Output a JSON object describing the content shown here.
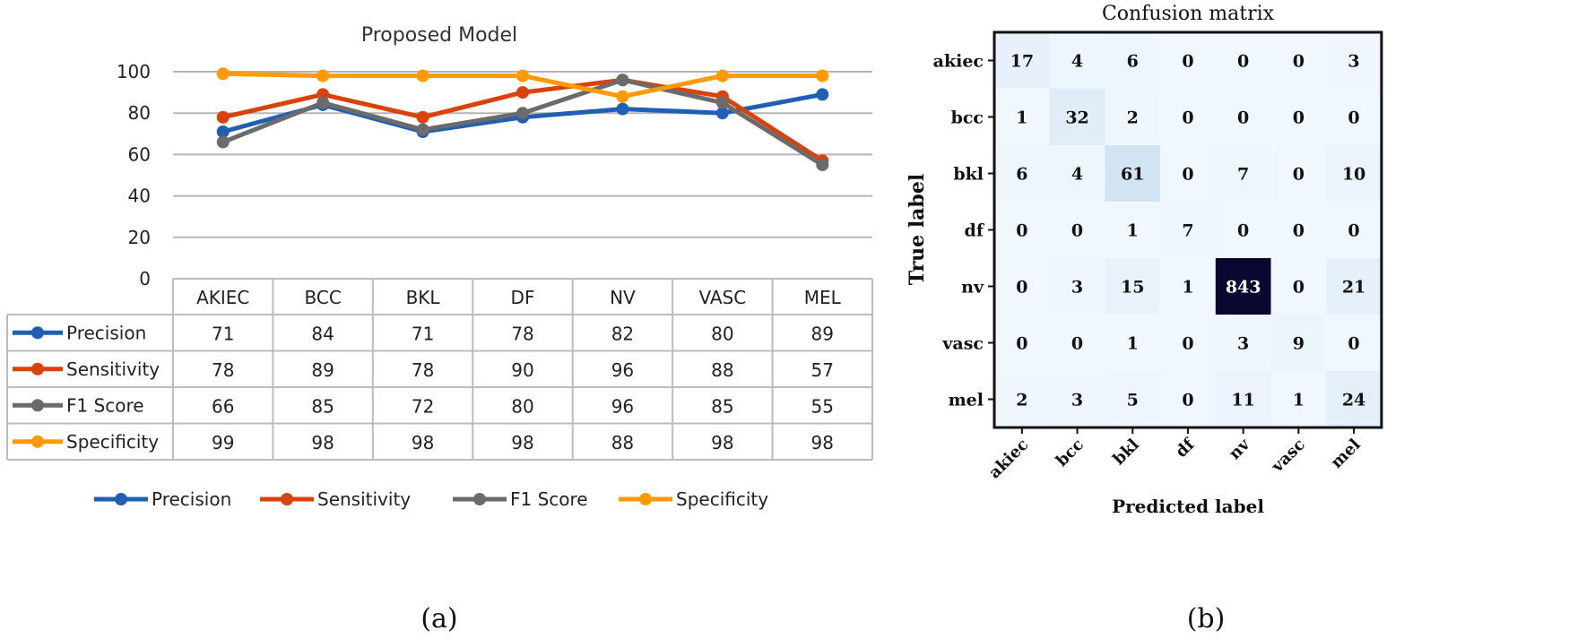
{
  "chart_data": [
    {
      "type": "line",
      "title": "Proposed Model",
      "categories": [
        "AKIEC",
        "BCC",
        "BKL",
        "DF",
        "NV",
        "VASC",
        "MEL"
      ],
      "yticks": [
        "0",
        "20",
        "40",
        "60",
        "80",
        "100"
      ],
      "ylim": [
        0,
        100
      ],
      "grid": true,
      "legend_placement": "bottom",
      "series": [
        {
          "name": "Precision",
          "color": "#1f5fb4",
          "values": [
            71,
            84,
            71,
            78,
            82,
            80,
            89
          ]
        },
        {
          "name": "Sensitivity",
          "color": "#d9420b",
          "values": [
            78,
            89,
            78,
            90,
            96,
            88,
            57
          ]
        },
        {
          "name": "F1 Score",
          "color": "#6b6b6b",
          "values": [
            66,
            85,
            72,
            80,
            96,
            85,
            55
          ]
        },
        {
          "name": "Specificity",
          "color": "#ff9a00",
          "values": [
            99,
            98,
            98,
            98,
            88,
            98,
            98
          ]
        }
      ],
      "data_table": true,
      "caption": "(a)"
    },
    {
      "type": "heatmap",
      "title": "Confusion matrix",
      "xlabel": "Predicted label",
      "ylabel": "True label",
      "labels": [
        "akiec",
        "bcc",
        "bkl",
        "df",
        "nv",
        "vasc",
        "mel"
      ],
      "colormap": "Blues",
      "matrix": [
        [
          17,
          4,
          6,
          0,
          0,
          0,
          3
        ],
        [
          1,
          32,
          2,
          0,
          0,
          0,
          0
        ],
        [
          6,
          4,
          61,
          0,
          7,
          0,
          10
        ],
        [
          0,
          0,
          1,
          7,
          0,
          0,
          0
        ],
        [
          0,
          3,
          15,
          1,
          843,
          0,
          21
        ],
        [
          0,
          0,
          1,
          0,
          3,
          9,
          0
        ],
        [
          2,
          3,
          5,
          0,
          11,
          1,
          24
        ]
      ],
      "caption": "(b)"
    }
  ]
}
